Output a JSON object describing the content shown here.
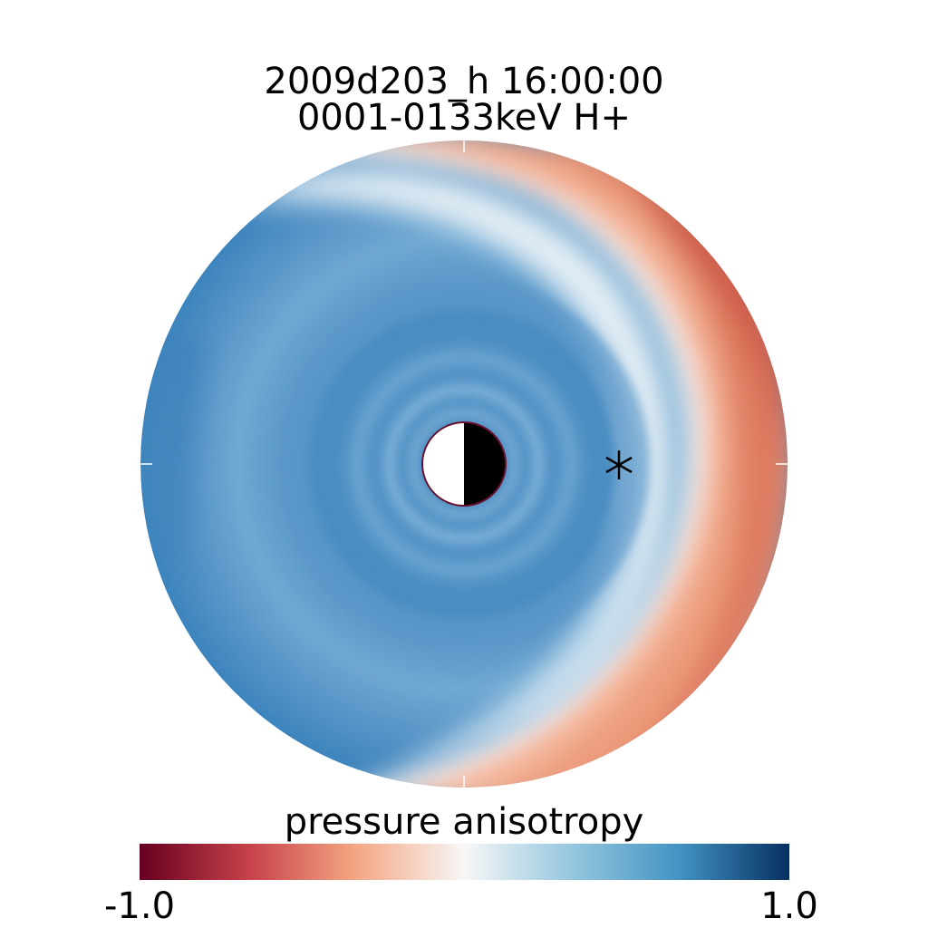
{
  "chart_data": {
    "type": "heatmap",
    "title_line1": "2009d203_h   16:00:00",
    "title_line2": "0001-0133keV H+",
    "colorbar": {
      "label": "pressure anisotropy",
      "min_label": "-1.0",
      "max_label": "1.0",
      "range": [
        -1.0,
        1.0
      ],
      "colormap": "red-white-blue",
      "colors": {
        "neg_dark": "#67001f",
        "neg_mid": "#c7424b",
        "neg_light": "#f4a582",
        "zero": "#f7f7f7",
        "pos_light": "#92c5de",
        "pos_mid": "#4393c3",
        "pos_dark": "#053061"
      }
    },
    "map": {
      "shape": "polar",
      "night_side": "right",
      "marker": "asterisk",
      "description_values": {
        "dayside_region_value": -0.55,
        "transition_band_value": 0.0,
        "inner_ring_value": 0.6,
        "left_outer_value": 0.55
      }
    }
  }
}
